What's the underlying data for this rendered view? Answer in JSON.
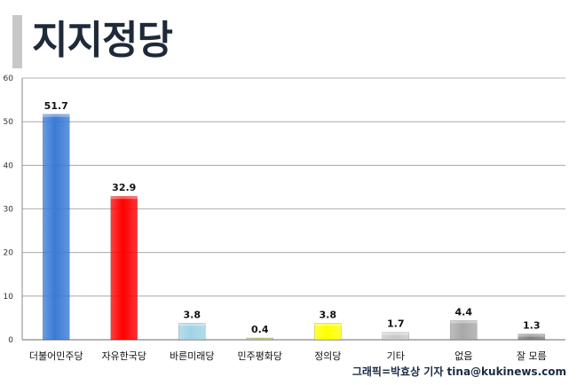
{
  "header": {
    "title": "지지정당"
  },
  "credit": "그래픽=박효상 기자 tina@kukinews.com",
  "chart_data": {
    "type": "bar",
    "categories": [
      "더불어민주당",
      "자유한국당",
      "바른미래당",
      "민주평화당",
      "정의당",
      "기타",
      "없음",
      "잘 모름"
    ],
    "values": [
      51.7,
      32.9,
      3.8,
      0.4,
      3.8,
      1.7,
      4.4,
      1.3
    ],
    "value_labels": [
      "51.7",
      "32.9",
      "3.8",
      "0.4",
      "3.8",
      "1.7",
      "4.4",
      "1.3"
    ],
    "colors": [
      "#3a7bd5",
      "#ff0000",
      "#9fd3e6",
      "#8aa83a",
      "#ffff00",
      "#c8c8c8",
      "#a8a8a8",
      "#808080"
    ],
    "yticks": [
      "0",
      "10",
      "20",
      "30",
      "40",
      "50",
      "60"
    ],
    "ylim": [
      0,
      60
    ],
    "grid": true,
    "legend": "none"
  }
}
